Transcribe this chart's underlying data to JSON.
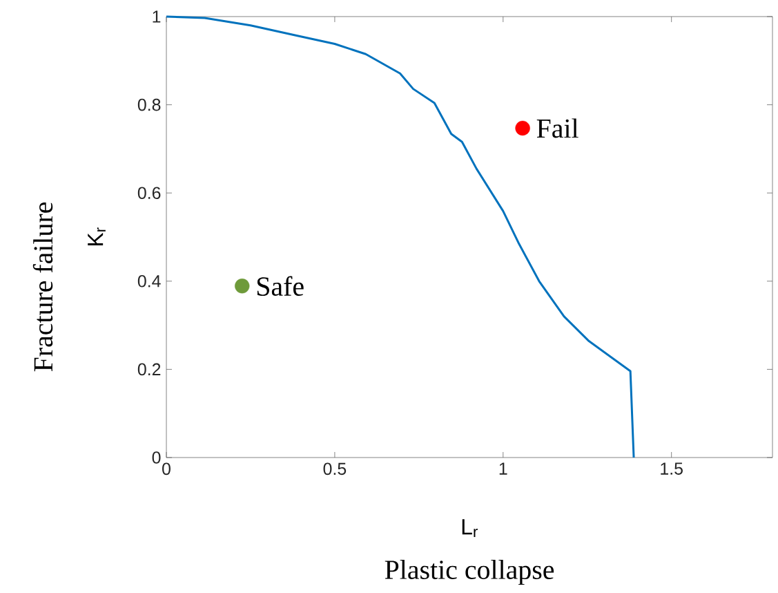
{
  "chart_data": {
    "type": "line",
    "xlabel": "L$_{r}$",
    "ylabel": "K$_{r}$",
    "annotations": [
      "Plastic collapse",
      "Fracture failure",
      {
        "text": "Safe",
        "x": 0.225,
        "y": 0.389
      },
      {
        "text": "Fail",
        "x": 1.058,
        "y": 0.747
      }
    ],
    "xlim": [
      0,
      1.8
    ],
    "xticks": [
      0,
      0.5,
      1,
      1.5
    ],
    "ylim": [
      0,
      1
    ],
    "yticks": [
      0,
      0.2,
      0.4,
      0.6,
      0.8,
      1
    ],
    "series": [
      {
        "color": "#0072bd",
        "x": [
          0,
          0.114,
          0.25,
          0.387,
          0.5,
          0.592,
          0.694,
          0.733,
          0.796,
          0.846,
          0.878,
          0.921,
          1.0,
          1.047,
          1.107,
          1.181,
          1.255,
          1.378,
          1.388
        ],
        "values": [
          1,
          0.997,
          0.98,
          0.957,
          0.938,
          0.915,
          0.871,
          0.836,
          0.804,
          0.734,
          0.716,
          0.655,
          0.559,
          0.485,
          0.4,
          0.32,
          0.264,
          0.196,
          0
        ]
      },
      {
        "type": "scatter",
        "color": "#6e9a3a",
        "x": [
          0.225
        ],
        "values": [
          0.389
        ]
      },
      {
        "type": "scatter",
        "color": "#ff0000",
        "x": [
          1.058
        ],
        "values": [
          0.747
        ]
      }
    ]
  }
}
